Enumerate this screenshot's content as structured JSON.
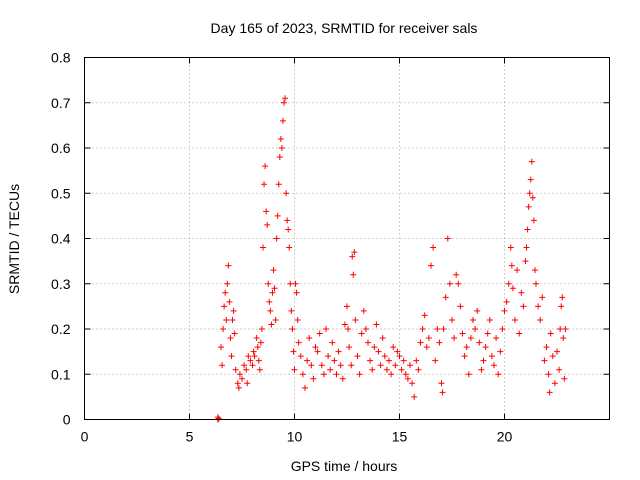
{
  "chart_data": {
    "type": "scatter",
    "title": "Day 165 of 2023, SRMTID for receiver sals",
    "xlabel": "GPS time / hours",
    "ylabel": "SRMTID / TECUs",
    "xlim": [
      0,
      25
    ],
    "ylim": [
      0,
      0.8
    ],
    "xticks": [
      0,
      5,
      10,
      15,
      20
    ],
    "xtick_labels": [
      "0",
      "5",
      "10",
      "15",
      "20"
    ],
    "yticks": [
      0,
      0.1,
      0.2,
      0.3,
      0.4,
      0.5,
      0.6,
      0.7,
      0.8
    ],
    "ytick_labels": [
      "0",
      "0.1",
      "0.2",
      "0.3",
      "0.4",
      "0.5",
      "0.6",
      "0.7",
      "0.8"
    ],
    "grid": true,
    "marker": "+",
    "color": "#ff0000",
    "series": [
      {
        "name": "SRMTID",
        "points": [
          [
            6.35,
            0.0
          ],
          [
            6.35,
            0.005
          ],
          [
            6.4,
            0.002
          ],
          [
            6.5,
            0.16
          ],
          [
            6.55,
            0.12
          ],
          [
            6.6,
            0.2
          ],
          [
            6.65,
            0.25
          ],
          [
            6.7,
            0.28
          ],
          [
            6.75,
            0.22
          ],
          [
            6.8,
            0.3
          ],
          [
            6.85,
            0.34
          ],
          [
            6.9,
            0.26
          ],
          [
            6.95,
            0.18
          ],
          [
            7.0,
            0.14
          ],
          [
            7.05,
            0.22
          ],
          [
            7.1,
            0.24
          ],
          [
            7.15,
            0.19
          ],
          [
            7.2,
            0.11
          ],
          [
            7.3,
            0.08
          ],
          [
            7.35,
            0.07
          ],
          [
            7.4,
            0.1
          ],
          [
            7.5,
            0.09
          ],
          [
            7.6,
            0.12
          ],
          [
            7.7,
            0.11
          ],
          [
            7.75,
            0.08
          ],
          [
            7.8,
            0.14
          ],
          [
            7.9,
            0.13
          ],
          [
            8.0,
            0.12
          ],
          [
            8.05,
            0.15
          ],
          [
            8.1,
            0.14
          ],
          [
            8.2,
            0.18
          ],
          [
            8.25,
            0.16
          ],
          [
            8.3,
            0.13
          ],
          [
            8.35,
            0.11
          ],
          [
            8.4,
            0.17
          ],
          [
            8.45,
            0.2
          ],
          [
            8.5,
            0.38
          ],
          [
            8.55,
            0.52
          ],
          [
            8.6,
            0.56
          ],
          [
            8.65,
            0.46
          ],
          [
            8.7,
            0.43
          ],
          [
            8.75,
            0.3
          ],
          [
            8.8,
            0.26
          ],
          [
            8.85,
            0.24
          ],
          [
            8.9,
            0.21
          ],
          [
            8.95,
            0.28
          ],
          [
            9.0,
            0.33
          ],
          [
            9.05,
            0.29
          ],
          [
            9.1,
            0.22
          ],
          [
            9.15,
            0.4
          ],
          [
            9.2,
            0.45
          ],
          [
            9.25,
            0.52
          ],
          [
            9.3,
            0.58
          ],
          [
            9.35,
            0.62
          ],
          [
            9.4,
            0.6
          ],
          [
            9.45,
            0.66
          ],
          [
            9.5,
            0.7
          ],
          [
            9.55,
            0.71
          ],
          [
            9.6,
            0.5
          ],
          [
            9.65,
            0.44
          ],
          [
            9.7,
            0.42
          ],
          [
            9.75,
            0.38
          ],
          [
            9.8,
            0.3
          ],
          [
            9.85,
            0.24
          ],
          [
            9.9,
            0.2
          ],
          [
            9.95,
            0.15
          ],
          [
            10.0,
            0.11
          ],
          [
            10.05,
            0.3
          ],
          [
            10.1,
            0.28
          ],
          [
            10.15,
            0.22
          ],
          [
            10.2,
            0.17
          ],
          [
            10.3,
            0.14
          ],
          [
            10.4,
            0.1
          ],
          [
            10.5,
            0.07
          ],
          [
            10.6,
            0.13
          ],
          [
            10.7,
            0.18
          ],
          [
            10.8,
            0.12
          ],
          [
            10.9,
            0.09
          ],
          [
            11.0,
            0.16
          ],
          [
            11.1,
            0.15
          ],
          [
            11.2,
            0.19
          ],
          [
            11.3,
            0.12
          ],
          [
            11.4,
            0.1
          ],
          [
            11.5,
            0.2
          ],
          [
            11.6,
            0.14
          ],
          [
            11.7,
            0.11
          ],
          [
            11.8,
            0.17
          ],
          [
            11.9,
            0.13
          ],
          [
            12.0,
            0.1
          ],
          [
            12.1,
            0.15
          ],
          [
            12.2,
            0.12
          ],
          [
            12.3,
            0.09
          ],
          [
            12.4,
            0.21
          ],
          [
            12.5,
            0.25
          ],
          [
            12.55,
            0.2
          ],
          [
            12.6,
            0.16
          ],
          [
            12.7,
            0.12
          ],
          [
            12.75,
            0.36
          ],
          [
            12.8,
            0.32
          ],
          [
            12.85,
            0.37
          ],
          [
            12.9,
            0.22
          ],
          [
            13.0,
            0.14
          ],
          [
            13.1,
            0.1
          ],
          [
            13.2,
            0.19
          ],
          [
            13.3,
            0.24
          ],
          [
            13.4,
            0.2
          ],
          [
            13.5,
            0.17
          ],
          [
            13.6,
            0.13
          ],
          [
            13.7,
            0.11
          ],
          [
            13.8,
            0.16
          ],
          [
            13.9,
            0.21
          ],
          [
            14.0,
            0.15
          ],
          [
            14.1,
            0.12
          ],
          [
            14.2,
            0.18
          ],
          [
            14.3,
            0.14
          ],
          [
            14.4,
            0.11
          ],
          [
            14.5,
            0.13
          ],
          [
            14.6,
            0.1
          ],
          [
            14.7,
            0.16
          ],
          [
            14.8,
            0.12
          ],
          [
            14.9,
            0.15
          ],
          [
            15.0,
            0.14
          ],
          [
            15.1,
            0.11
          ],
          [
            15.2,
            0.13
          ],
          [
            15.3,
            0.1
          ],
          [
            15.4,
            0.09
          ],
          [
            15.5,
            0.12
          ],
          [
            15.6,
            0.08
          ],
          [
            15.7,
            0.05
          ],
          [
            15.8,
            0.13
          ],
          [
            15.9,
            0.11
          ],
          [
            16.0,
            0.17
          ],
          [
            16.1,
            0.2
          ],
          [
            16.2,
            0.23
          ],
          [
            16.3,
            0.16
          ],
          [
            16.4,
            0.18
          ],
          [
            16.5,
            0.34
          ],
          [
            16.6,
            0.38
          ],
          [
            16.7,
            0.13
          ],
          [
            16.8,
            0.2
          ],
          [
            16.9,
            0.17
          ],
          [
            17.0,
            0.08
          ],
          [
            17.05,
            0.06
          ],
          [
            17.1,
            0.2
          ],
          [
            17.2,
            0.27
          ],
          [
            17.3,
            0.4
          ],
          [
            17.4,
            0.3
          ],
          [
            17.5,
            0.22
          ],
          [
            17.6,
            0.18
          ],
          [
            17.7,
            0.32
          ],
          [
            17.8,
            0.3
          ],
          [
            17.9,
            0.25
          ],
          [
            18.0,
            0.19
          ],
          [
            18.1,
            0.14
          ],
          [
            18.2,
            0.16
          ],
          [
            18.3,
            0.1
          ],
          [
            18.4,
            0.18
          ],
          [
            18.5,
            0.22
          ],
          [
            18.6,
            0.2
          ],
          [
            18.7,
            0.24
          ],
          [
            18.8,
            0.17
          ],
          [
            18.9,
            0.11
          ],
          [
            19.0,
            0.13
          ],
          [
            19.1,
            0.16
          ],
          [
            19.2,
            0.19
          ],
          [
            19.3,
            0.22
          ],
          [
            19.4,
            0.14
          ],
          [
            19.5,
            0.12
          ],
          [
            19.6,
            0.18
          ],
          [
            19.7,
            0.1
          ],
          [
            19.8,
            0.15
          ],
          [
            19.9,
            0.2
          ],
          [
            20.0,
            0.24
          ],
          [
            20.1,
            0.26
          ],
          [
            20.2,
            0.3
          ],
          [
            20.3,
            0.38
          ],
          [
            20.35,
            0.34
          ],
          [
            20.4,
            0.29
          ],
          [
            20.5,
            0.22
          ],
          [
            20.6,
            0.33
          ],
          [
            20.7,
            0.19
          ],
          [
            20.8,
            0.28
          ],
          [
            20.9,
            0.25
          ],
          [
            21.0,
            0.35
          ],
          [
            21.05,
            0.38
          ],
          [
            21.1,
            0.42
          ],
          [
            21.15,
            0.47
          ],
          [
            21.2,
            0.5
          ],
          [
            21.25,
            0.53
          ],
          [
            21.3,
            0.57
          ],
          [
            21.35,
            0.49
          ],
          [
            21.4,
            0.44
          ],
          [
            21.45,
            0.33
          ],
          [
            21.5,
            0.3
          ],
          [
            21.6,
            0.25
          ],
          [
            21.7,
            0.22
          ],
          [
            21.8,
            0.27
          ],
          [
            21.9,
            0.13
          ],
          [
            22.0,
            0.16
          ],
          [
            22.1,
            0.1
          ],
          [
            22.15,
            0.06
          ],
          [
            22.2,
            0.19
          ],
          [
            22.3,
            0.14
          ],
          [
            22.4,
            0.08
          ],
          [
            22.5,
            0.15
          ],
          [
            22.6,
            0.11
          ],
          [
            22.65,
            0.2
          ],
          [
            22.7,
            0.25
          ],
          [
            22.75,
            0.27
          ],
          [
            22.8,
            0.18
          ],
          [
            22.85,
            0.09
          ],
          [
            22.9,
            0.2
          ]
        ]
      }
    ]
  }
}
